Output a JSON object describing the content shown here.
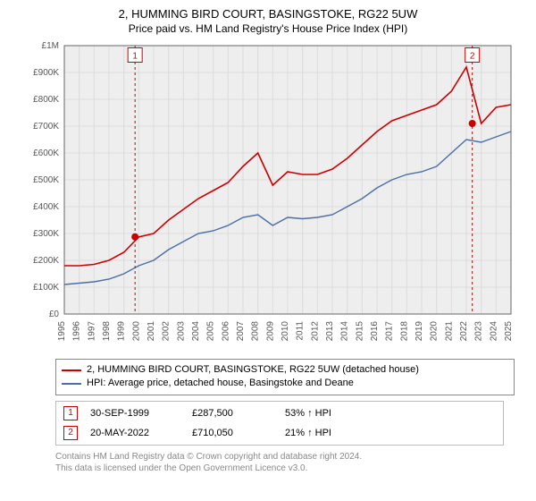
{
  "title": "2, HUMMING BIRD COURT, BASINGSTOKE, RG22 5UW",
  "subtitle": "Price paid vs. HM Land Registry's House Price Index (HPI)",
  "chart": {
    "type": "line",
    "background": "#eeeeee",
    "border": "#666666",
    "grid_color": "#dcdcdc",
    "ylim": [
      0,
      1000000
    ],
    "ytick_step": 100000,
    "ytick_labels": [
      "£0",
      "£100K",
      "£200K",
      "£300K",
      "£400K",
      "£500K",
      "£600K",
      "£700K",
      "£800K",
      "£900K",
      "£1M"
    ],
    "xyears": [
      1995,
      1996,
      1997,
      1998,
      1999,
      2000,
      2001,
      2002,
      2003,
      2004,
      2005,
      2006,
      2007,
      2008,
      2009,
      2010,
      2011,
      2012,
      2013,
      2014,
      2015,
      2016,
      2017,
      2018,
      2019,
      2020,
      2021,
      2022,
      2023,
      2024,
      2025
    ],
    "series": [
      {
        "name": "price_paid",
        "label": "2, HUMMING BIRD COURT, BASINGSTOKE, RG22 5UW (detached house)",
        "color": "#cc0000",
        "width": 1.6,
        "values": [
          180000,
          180000,
          185000,
          200000,
          230000,
          287500,
          300000,
          350000,
          390000,
          430000,
          460000,
          490000,
          550000,
          600000,
          480000,
          530000,
          520000,
          520000,
          540000,
          580000,
          630000,
          680000,
          720000,
          740000,
          760000,
          780000,
          830000,
          920000,
          710050,
          770000,
          780000
        ]
      },
      {
        "name": "hpi",
        "label": "HPI: Average price, detached house, Basingstoke and Deane",
        "color": "#4a6fa5",
        "width": 1.4,
        "values": [
          110000,
          115000,
          120000,
          130000,
          150000,
          180000,
          200000,
          240000,
          270000,
          300000,
          310000,
          330000,
          360000,
          370000,
          330000,
          360000,
          355000,
          360000,
          370000,
          400000,
          430000,
          470000,
          500000,
          520000,
          530000,
          550000,
          600000,
          650000,
          640000,
          660000,
          680000
        ]
      }
    ],
    "markers": [
      {
        "num": "1",
        "x_year": 1999.75,
        "y": 287500,
        "label_y": 985000
      },
      {
        "num": "2",
        "x_year": 2022.4,
        "y": 710050,
        "label_y": 985000
      }
    ],
    "marker_line_color": "#cc0000",
    "marker_dot_color": "#cc0000"
  },
  "legend": {
    "s1": "2, HUMMING BIRD COURT, BASINGSTOKE, RG22 5UW (detached house)",
    "s2": "HPI: Average price, detached house, Basingstoke and Deane"
  },
  "transactions": [
    {
      "num": "1",
      "date": "30-SEP-1999",
      "price": "£287,500",
      "delta": "53% ↑ HPI"
    },
    {
      "num": "2",
      "date": "20-MAY-2022",
      "price": "£710,050",
      "delta": "21% ↑ HPI"
    }
  ],
  "footer": {
    "l1": "Contains HM Land Registry data © Crown copyright and database right 2024.",
    "l2": "This data is licensed under the Open Government Licence v3.0."
  }
}
